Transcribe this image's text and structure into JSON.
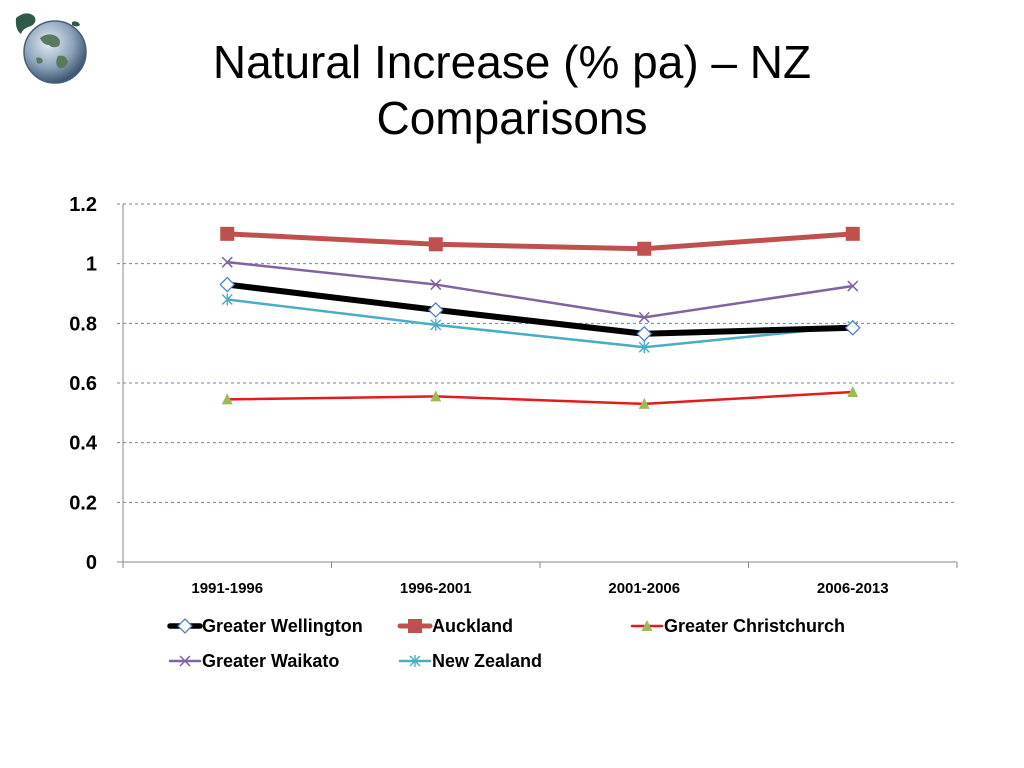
{
  "slide": {
    "title_line1": "Natural Increase (% pa) – NZ",
    "title_line2": "Comparisons",
    "logo_icon": "globe-icon"
  },
  "chart_data": {
    "type": "line",
    "title": "",
    "xlabel": "",
    "ylabel": "",
    "categories": [
      "1991-1996",
      "1996-2001",
      "2001-2006",
      "2006-2013"
    ],
    "ylim": [
      0,
      1.2
    ],
    "yticks": [
      0,
      0.2,
      0.4,
      0.6,
      0.8,
      1,
      1.2
    ],
    "ytick_labels": [
      "0",
      "0.2",
      "0.4",
      "0.6",
      "0.8",
      "1",
      "1.2"
    ],
    "grid": true,
    "legend_position": "bottom",
    "series": [
      {
        "name": "Greater Wellington",
        "values": [
          0.93,
          0.845,
          0.765,
          0.785
        ],
        "color": "#000000",
        "marker": "diamond"
      },
      {
        "name": "Auckland",
        "values": [
          1.1,
          1.065,
          1.05,
          1.1
        ],
        "color": "#C0504D",
        "marker": "square"
      },
      {
        "name": "Greater Christchurch",
        "values": [
          0.545,
          0.555,
          0.53,
          0.57
        ],
        "color": "#E41A1C",
        "marker": "triangle",
        "marker_color": "#9BBB59"
      },
      {
        "name": "Greater Waikato",
        "values": [
          1.005,
          0.93,
          0.82,
          0.925
        ],
        "color": "#8064A2",
        "marker": "x"
      },
      {
        "name": "New Zealand",
        "values": [
          0.88,
          0.795,
          0.72,
          0.79
        ],
        "color": "#4BACC6",
        "marker": "star"
      }
    ]
  }
}
